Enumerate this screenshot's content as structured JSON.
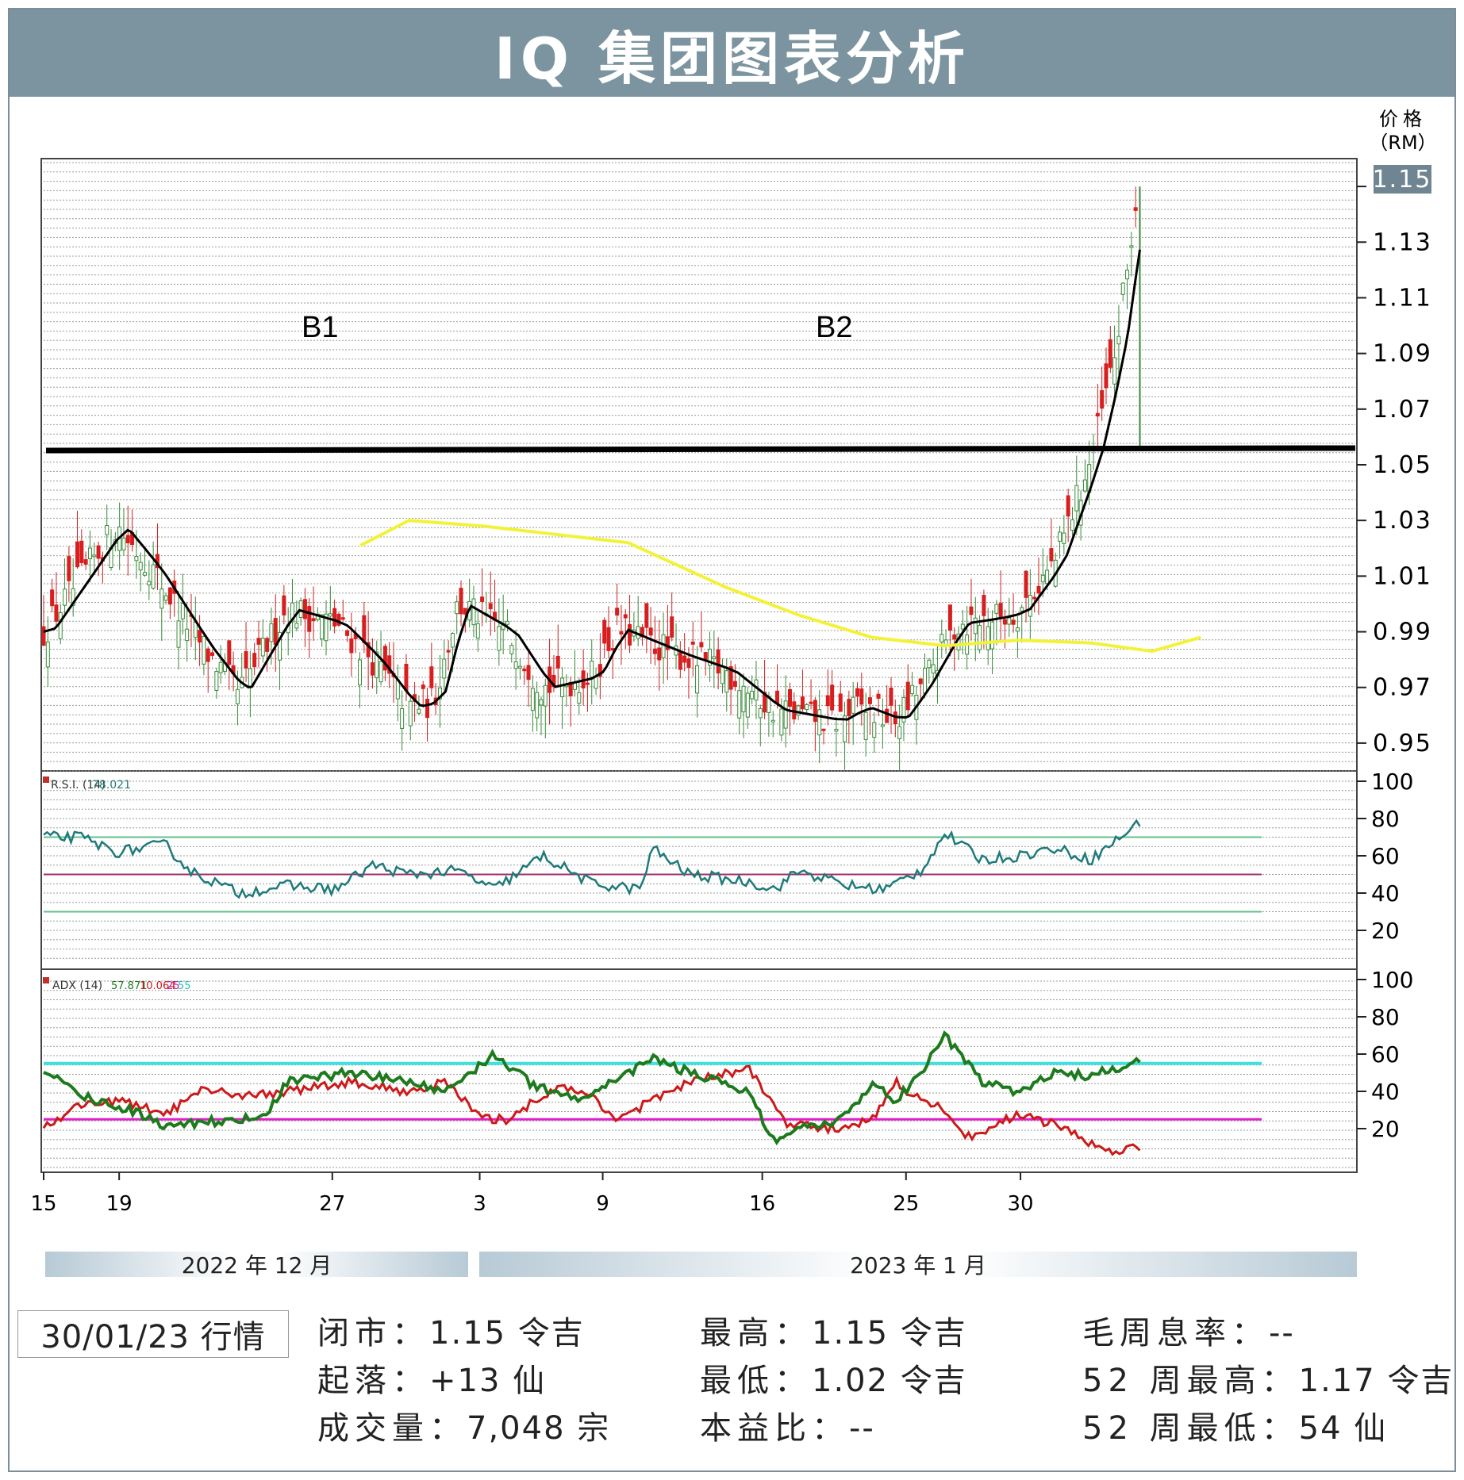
{
  "title": "IQ 集团图表分析",
  "chart_data": {
    "type": "candlestick",
    "price_axis": {
      "label_line1": "价格",
      "label_line2": "（RM）",
      "ticks": [
        "1.15",
        "1.13",
        "1.11",
        "1.09",
        "1.07",
        "1.05",
        "1.03",
        "1.01",
        "0.99",
        "0.97",
        "0.95"
      ],
      "range": [
        0.94,
        1.16
      ],
      "last_price": "1.15"
    },
    "annotations": [
      "B1",
      "B2"
    ],
    "resistance_level": 1.056,
    "x_tick_labels": [
      "15",
      "19",
      "27",
      "3",
      "9",
      "16",
      "25",
      "30"
    ],
    "months": [
      "2022 年 12 月",
      "2023 年 1 月"
    ],
    "moving_average_yellow": [
      [
        1.021,
        0.26
      ],
      [
        1.03,
        0.3
      ],
      [
        1.028,
        0.36
      ],
      [
        1.025,
        0.42
      ],
      [
        1.022,
        0.48
      ],
      [
        1.014,
        0.52
      ],
      [
        1.006,
        0.56
      ],
      [
        0.996,
        0.62
      ],
      [
        0.988,
        0.68
      ],
      [
        0.985,
        0.74
      ],
      [
        0.987,
        0.8
      ],
      [
        0.986,
        0.86
      ],
      [
        0.983,
        0.91
      ],
      [
        0.988,
        0.95
      ]
    ],
    "rsi": {
      "label": "R.S.I. (14)",
      "value": "78.021",
      "ticks": [
        "100",
        "80",
        "60",
        "40",
        "20"
      ],
      "levels": [
        70,
        50,
        30
      ]
    },
    "adx": {
      "label": "ADX (14)",
      "values": [
        "57.871",
        "10.064",
        "25",
        "55"
      ],
      "ticks": [
        "100",
        "80",
        "60",
        "40",
        "20"
      ],
      "levels": [
        55,
        25
      ]
    },
    "colors": {
      "up": "#2e8b2e",
      "down": "#d81e1e",
      "ma_black": "#000000",
      "ma_yellow": "#f2f23a",
      "rsi_line": "#1f7a7a",
      "adx_green": "#1d7a1d",
      "adx_red": "#cc1a1a",
      "level_cyan": "#3fe0e0",
      "level_magenta": "#e020c8",
      "level_green": "#62c08a",
      "level_purple": "#a0306a"
    }
  },
  "stats": {
    "date": "30/01/23 行情",
    "close_label": "闭市：",
    "close_value": "1.15 令吉",
    "change_label": "起落：",
    "change_value": "+13 仙",
    "volume_label": "成交量：",
    "volume_value": "7,048 宗",
    "high_label": "最高：",
    "high_value": "1.15 令吉",
    "low_label": "最低：",
    "low_value": "1.02 令吉",
    "pe_label": "本益比：",
    "pe_value": "--",
    "yield_label": "毛周息率：",
    "yield_value": "--",
    "w52_high_label": "52 周最高：",
    "w52_high_value": "1.17 令吉",
    "w52_low_label": "52 周最低：",
    "w52_low_value": "54 仙"
  }
}
